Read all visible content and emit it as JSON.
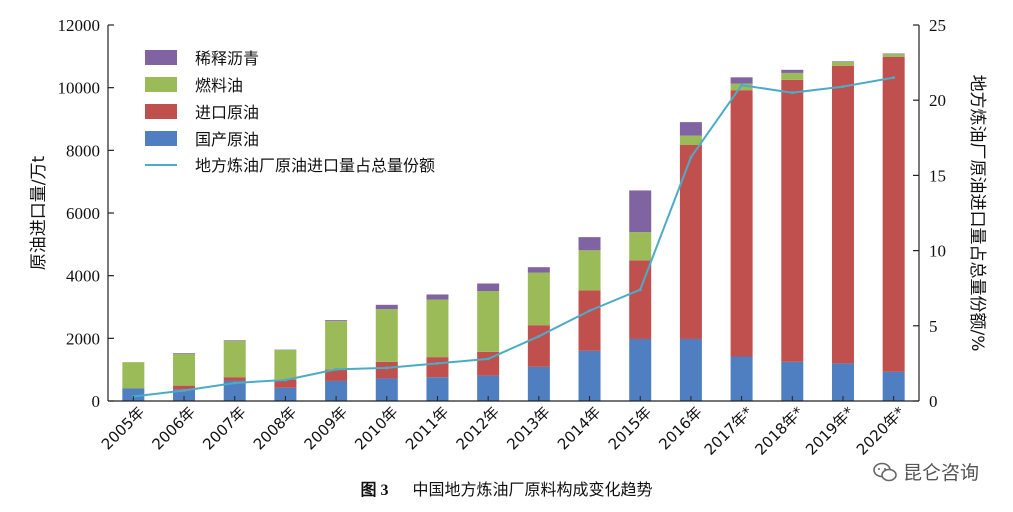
{
  "chart_data": {
    "type": "bar",
    "stacked": true,
    "categories": [
      "2005年",
      "2006年",
      "2007年",
      "2008年",
      "2009年",
      "2010年",
      "2011年",
      "2012年",
      "2013年",
      "2014年",
      "2015年",
      "2016年",
      "2017年*",
      "2018年*",
      "2019年*",
      "2020年*"
    ],
    "series": [
      {
        "name": "国产原油",
        "color": "#4f7fc0",
        "values": [
          400,
          370,
          640,
          420,
          640,
          720,
          760,
          810,
          1090,
          1600,
          1980,
          1980,
          1420,
          1250,
          1200,
          930
        ]
      },
      {
        "name": "进口原油",
        "color": "#c0504d",
        "values": [
          0,
          120,
          120,
          270,
          370,
          530,
          640,
          760,
          1330,
          1930,
          2510,
          6190,
          8500,
          9000,
          9500,
          10050
        ]
      },
      {
        "name": "燃料油",
        "color": "#9bbb59",
        "values": [
          840,
          1020,
          1160,
          940,
          1540,
          1680,
          1840,
          1940,
          1680,
          1280,
          900,
          300,
          210,
          220,
          120,
          90
        ]
      },
      {
        "name": "稀释沥青",
        "color": "#8064a2",
        "values": [
          0,
          20,
          20,
          10,
          30,
          140,
          160,
          240,
          170,
          420,
          1330,
          430,
          200,
          100,
          20,
          20
        ]
      }
    ],
    "line_series": {
      "name": "地方炼油厂原油进口量占总量份额",
      "color": "#4bacc6",
      "axis": "right",
      "values": [
        0.3,
        0.7,
        1.2,
        1.4,
        2.1,
        2.2,
        2.5,
        2.8,
        4.3,
        6.0,
        7.4,
        16.2,
        21.0,
        20.5,
        20.9,
        21.5
      ]
    },
    "ylabel": "原油进口量/万t",
    "y2label": "地方炼油厂原油进口量占总量份额/%",
    "ylim": [
      0,
      12000
    ],
    "y2lim": [
      0,
      25
    ],
    "yticks": [
      0,
      2000,
      4000,
      6000,
      8000,
      10000,
      12000
    ],
    "y2ticks": [
      0,
      5,
      10,
      15,
      20,
      25
    ],
    "legend": "top-left",
    "grid": false
  },
  "caption": {
    "figure": "图 3",
    "text": "中国地方炼油厂原料构成变化趋势"
  },
  "watermark": "昆仑咨询"
}
